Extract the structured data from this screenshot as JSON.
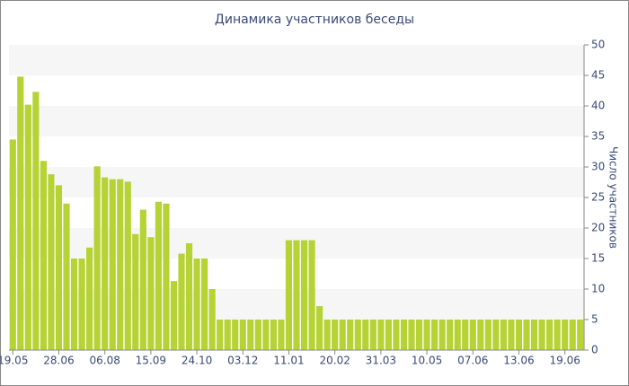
{
  "chart_data": {
    "type": "bar",
    "title": "Динамика участников беседы",
    "y_label": "Число участников",
    "categories": [
      "19.05",
      null,
      null,
      null,
      null,
      null,
      "28.06",
      null,
      null,
      null,
      null,
      null,
      "06.08",
      null,
      null,
      null,
      null,
      null,
      "15.09",
      null,
      null,
      null,
      null,
      null,
      "24.10",
      null,
      null,
      null,
      null,
      null,
      "03.12",
      null,
      null,
      null,
      null,
      null,
      "11.01",
      null,
      null,
      null,
      null,
      null,
      "20.02",
      null,
      null,
      null,
      null,
      null,
      "31.03",
      null,
      null,
      null,
      null,
      null,
      "10.05",
      null,
      null,
      null,
      null,
      null,
      "07.06",
      null,
      null,
      null,
      null,
      null,
      "13.06",
      null,
      null,
      null,
      null,
      null,
      "19.06",
      null,
      null
    ],
    "values": [
      34.5,
      44.8,
      40.2,
      42.3,
      31,
      28.8,
      27,
      24,
      15,
      15,
      16.8,
      30.1,
      28.3,
      28,
      28,
      27.6,
      19,
      23,
      18.5,
      24.3,
      24,
      11.3,
      15.8,
      17.5,
      15,
      15,
      10,
      5,
      5,
      5,
      5,
      5,
      5,
      5,
      5,
      5,
      18,
      18,
      18,
      18,
      7.2,
      5,
      5,
      5,
      5,
      5,
      5,
      5,
      5,
      5,
      5,
      5,
      5,
      5,
      5,
      5,
      5,
      5,
      5,
      5,
      5,
      5,
      5,
      5,
      5,
      5,
      5,
      5,
      5,
      5,
      5,
      5,
      5,
      5,
      5
    ],
    "color": "#b5d334",
    "ylim": [
      0,
      50
    ],
    "yticks": [
      0,
      5,
      10,
      15,
      20,
      25,
      30,
      35,
      40,
      45,
      50
    ],
    "grid": true
  }
}
